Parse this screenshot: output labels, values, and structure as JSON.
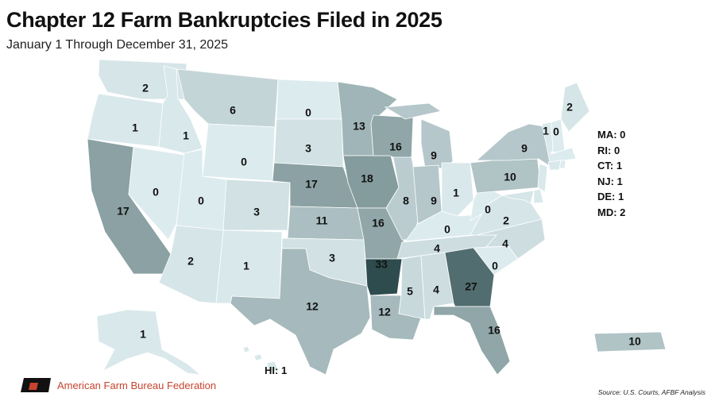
{
  "header": {
    "title": "Chapter 12 Farm Bankruptcies Filed in 2025",
    "subtitle": "January 1 Through December 31, 2025"
  },
  "map": {
    "type": "choropleth",
    "region": "United States",
    "color_scale": {
      "low": "#dcebee",
      "high": "#2e4c4e"
    },
    "states": {
      "WA": 2,
      "OR": 1,
      "CA": 17,
      "NV": 0,
      "ID": 1,
      "MT": 6,
      "WY": 0,
      "UT": 0,
      "AZ": 2,
      "CO": 3,
      "NM": 1,
      "ND": 0,
      "SD": 3,
      "NE": 17,
      "KS": 11,
      "OK": 3,
      "TX": 12,
      "MN": 13,
      "IA": 18,
      "MO": 16,
      "AR": 33,
      "LA": 12,
      "WI": 16,
      "IL": 8,
      "MI": 9,
      "IN": 9,
      "OH": 1,
      "KY": 0,
      "TN": 4,
      "MS": 5,
      "AL": 4,
      "GA": 27,
      "FL": 16,
      "SC": 0,
      "NC": 4,
      "VA": 2,
      "WV": 0,
      "PA": 10,
      "NY": 9,
      "VT": 1,
      "NH": 0,
      "ME": 2,
      "AK": 1,
      "HI": 1,
      "PR": 10,
      "MA": 0,
      "RI": 0,
      "CT": 1,
      "NJ": 1,
      "DE": 1,
      "MD": 2
    },
    "side_list": [
      "MA: 0",
      "RI: 0",
      "CT: 1",
      "NJ: 1",
      "DE: 1",
      "MD: 2"
    ],
    "hi_label": "HI: 1"
  },
  "footer": {
    "organization": "American Farm Bureau Federation",
    "source": "Source: U.S. Courts, AFBF Analysis"
  }
}
